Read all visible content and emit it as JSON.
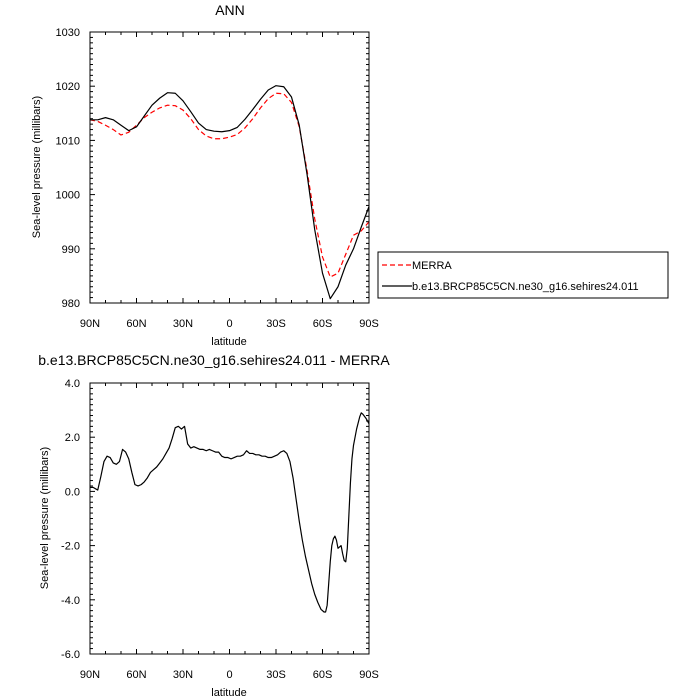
{
  "chart_data": [
    {
      "type": "line",
      "title": "ANN",
      "xlabel": "latitude",
      "ylabel": "Sea-level pressure (millibars)",
      "xlim": [
        90,
        -90
      ],
      "ylim": [
        980,
        1030
      ],
      "x_tick_labels": [
        "90N",
        "60N",
        "30N",
        "0",
        "30S",
        "60S",
        "90S"
      ],
      "y_tick_labels": [
        "980",
        "990",
        "1000",
        "1010",
        "1020",
        "1030"
      ],
      "grid": false,
      "legend_position": "right-of-plot",
      "series": [
        {
          "name": "MERRA",
          "color": "#ff0000",
          "style": "dashed",
          "points": [
            [
              90,
              1013.8
            ],
            [
              85,
              1013.5
            ],
            [
              80,
              1012.8
            ],
            [
              75,
              1012.0
            ],
            [
              70,
              1011.0
            ],
            [
              65,
              1011.5
            ],
            [
              60,
              1012.8
            ],
            [
              55,
              1014.2
            ],
            [
              50,
              1015.2
            ],
            [
              45,
              1016.0
            ],
            [
              40,
              1016.5
            ],
            [
              35,
              1016.4
            ],
            [
              30,
              1015.6
            ],
            [
              25,
              1014.0
            ],
            [
              20,
              1012.0
            ],
            [
              15,
              1010.8
            ],
            [
              10,
              1010.3
            ],
            [
              5,
              1010.3
            ],
            [
              0,
              1010.6
            ],
            [
              -5,
              1011.1
            ],
            [
              -10,
              1012.3
            ],
            [
              -15,
              1014.0
            ],
            [
              -20,
              1016.0
            ],
            [
              -25,
              1017.7
            ],
            [
              -30,
              1018.7
            ],
            [
              -35,
              1018.6
            ],
            [
              -40,
              1017.0
            ],
            [
              -45,
              1012.5
            ],
            [
              -50,
              1004.5
            ],
            [
              -55,
              995.5
            ],
            [
              -60,
              988.5
            ],
            [
              -65,
              984.8
            ],
            [
              -70,
              985.5
            ],
            [
              -75,
              989.0
            ],
            [
              -80,
              992.5
            ],
            [
              -85,
              993.3
            ],
            [
              -90,
              995.0
            ]
          ]
        },
        {
          "name": "b.e13.BRCP85C5CN.ne30_g16.sehires24.011",
          "color": "#000000",
          "style": "solid",
          "points": [
            [
              90,
              1013.8
            ],
            [
              85,
              1013.8
            ],
            [
              80,
              1014.2
            ],
            [
              75,
              1013.8
            ],
            [
              70,
              1012.8
            ],
            [
              65,
              1011.8
            ],
            [
              60,
              1012.5
            ],
            [
              55,
              1014.5
            ],
            [
              50,
              1016.5
            ],
            [
              45,
              1017.8
            ],
            [
              40,
              1018.8
            ],
            [
              35,
              1018.7
            ],
            [
              30,
              1017.3
            ],
            [
              25,
              1015.3
            ],
            [
              20,
              1013.2
            ],
            [
              15,
              1012.0
            ],
            [
              10,
              1011.7
            ],
            [
              5,
              1011.6
            ],
            [
              0,
              1011.8
            ],
            [
              -5,
              1012.4
            ],
            [
              -10,
              1013.9
            ],
            [
              -15,
              1015.7
            ],
            [
              -20,
              1017.6
            ],
            [
              -25,
              1019.3
            ],
            [
              -30,
              1020.1
            ],
            [
              -35,
              1019.9
            ],
            [
              -40,
              1018.0
            ],
            [
              -45,
              1012.8
            ],
            [
              -50,
              1003.8
            ],
            [
              -55,
              993.5
            ],
            [
              -60,
              985.5
            ],
            [
              -65,
              980.8
            ],
            [
              -70,
              983.0
            ],
            [
              -75,
              987.0
            ],
            [
              -80,
              990.0
            ],
            [
              -85,
              994.0
            ],
            [
              -90,
              997.8
            ]
          ]
        }
      ]
    },
    {
      "type": "line",
      "title": "b.e13.BRCP85C5CN.ne30_g16.sehires24.011 - MERRA",
      "xlabel": "latitude",
      "ylabel": "Sea-level pressure (millibars)",
      "xlim": [
        90,
        -90
      ],
      "ylim": [
        -6.0,
        4.0
      ],
      "x_tick_labels": [
        "90N",
        "60N",
        "30N",
        "0",
        "30S",
        "60S",
        "90S"
      ],
      "y_tick_labels": [
        "-6.0",
        "-4.0",
        "-2.0",
        "0.0",
        "2.0",
        "4.0"
      ],
      "grid": false,
      "series": [
        {
          "color": "#000000",
          "style": "solid",
          "points": [
            [
              90,
              0.15
            ],
            [
              88,
              0.15
            ],
            [
              85,
              0.05
            ],
            [
              83,
              0.55
            ],
            [
              81,
              1.1
            ],
            [
              79,
              1.3
            ],
            [
              77,
              1.25
            ],
            [
              75,
              1.05
            ],
            [
              73,
              1.0
            ],
            [
              71,
              1.1
            ],
            [
              69,
              1.55
            ],
            [
              67,
              1.45
            ],
            [
              65,
              1.2
            ],
            [
              63,
              0.7
            ],
            [
              61,
              0.25
            ],
            [
              59,
              0.2
            ],
            [
              57,
              0.25
            ],
            [
              55,
              0.35
            ],
            [
              53,
              0.5
            ],
            [
              51,
              0.7
            ],
            [
              49,
              0.8
            ],
            [
              47,
              0.9
            ],
            [
              45,
              1.05
            ],
            [
              43,
              1.2
            ],
            [
              41,
              1.4
            ],
            [
              39,
              1.6
            ],
            [
              37,
              1.95
            ],
            [
              35,
              2.35
            ],
            [
              33,
              2.4
            ],
            [
              31,
              2.3
            ],
            [
              29,
              2.4
            ],
            [
              27,
              1.75
            ],
            [
              25,
              1.6
            ],
            [
              23,
              1.65
            ],
            [
              21,
              1.6
            ],
            [
              19,
              1.55
            ],
            [
              17,
              1.55
            ],
            [
              15,
              1.5
            ],
            [
              13,
              1.55
            ],
            [
              11,
              1.5
            ],
            [
              9,
              1.45
            ],
            [
              7,
              1.45
            ],
            [
              5,
              1.3
            ],
            [
              3,
              1.25
            ],
            [
              1,
              1.25
            ],
            [
              -1,
              1.2
            ],
            [
              -3,
              1.25
            ],
            [
              -5,
              1.3
            ],
            [
              -7,
              1.3
            ],
            [
              -9,
              1.35
            ],
            [
              -11,
              1.5
            ],
            [
              -13,
              1.4
            ],
            [
              -15,
              1.4
            ],
            [
              -17,
              1.35
            ],
            [
              -19,
              1.35
            ],
            [
              -21,
              1.3
            ],
            [
              -23,
              1.3
            ],
            [
              -25,
              1.25
            ],
            [
              -27,
              1.25
            ],
            [
              -29,
              1.3
            ],
            [
              -31,
              1.35
            ],
            [
              -33,
              1.45
            ],
            [
              -35,
              1.5
            ],
            [
              -37,
              1.4
            ],
            [
              -39,
              1.1
            ],
            [
              -41,
              0.5
            ],
            [
              -43,
              -0.3
            ],
            [
              -45,
              -1.1
            ],
            [
              -47,
              -1.8
            ],
            [
              -49,
              -2.4
            ],
            [
              -51,
              -2.9
            ],
            [
              -53,
              -3.4
            ],
            [
              -55,
              -3.8
            ],
            [
              -57,
              -4.1
            ],
            [
              -59,
              -4.35
            ],
            [
              -61,
              -4.45
            ],
            [
              -62,
              -4.45
            ],
            [
              -63,
              -4.2
            ],
            [
              -64,
              -3.4
            ],
            [
              -65,
              -2.6
            ],
            [
              -66,
              -2.0
            ],
            [
              -67,
              -1.75
            ],
            [
              -68,
              -1.65
            ],
            [
              -69,
              -1.8
            ],
            [
              -70,
              -2.1
            ],
            [
              -71,
              -2.05
            ],
            [
              -72,
              -2.0
            ],
            [
              -73,
              -2.3
            ],
            [
              -74,
              -2.55
            ],
            [
              -75,
              -2.6
            ],
            [
              -76,
              -2.1
            ],
            [
              -77,
              -0.9
            ],
            [
              -78,
              0.3
            ],
            [
              -79,
              1.2
            ],
            [
              -80,
              1.7
            ],
            [
              -82,
              2.3
            ],
            [
              -84,
              2.75
            ],
            [
              -85,
              2.9
            ],
            [
              -86,
              2.85
            ],
            [
              -88,
              2.7
            ],
            [
              -90,
              2.5
            ]
          ]
        }
      ]
    }
  ]
}
